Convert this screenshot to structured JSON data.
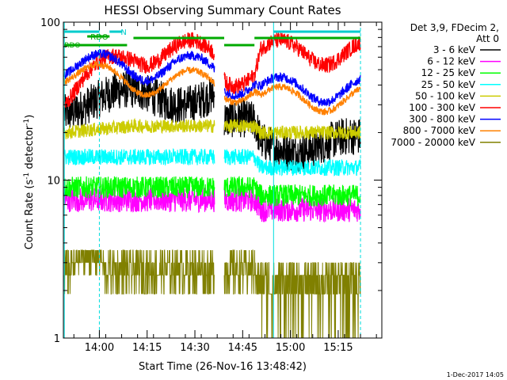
{
  "chart_data": {
    "type": "line",
    "title": "HESSI Observing Summary Count Rates",
    "xlabel": "Start Time (26-Nov-16 13:48:42)",
    "ylabel": "Count Rate (s⁻¹ detector⁻¹)",
    "ylabel_main": "Count Rate (s",
    "ylabel_sup1": "-1",
    "ylabel_mid": " detector",
    "ylabel_sup2": "-1",
    "ylabel_end": ")",
    "y_scale": "log",
    "ylim": [
      1,
      100
    ],
    "y_tick_labels": [
      "1",
      "10",
      "100"
    ],
    "xlim_minutes_after_start": [
      0,
      100
    ],
    "x_ticks": [
      {
        "label": "14:00",
        "t": 11.3
      },
      {
        "label": "14:15",
        "t": 26.3
      },
      {
        "label": "14:30",
        "t": 41.3
      },
      {
        "label": "14:45",
        "t": 56.3
      },
      {
        "label": "15:00",
        "t": 71.3
      },
      {
        "label": "15:15",
        "t": 86.3
      }
    ],
    "legend_header": [
      "Det 3,9, FDecim 2,",
      "Att 0"
    ],
    "legend_placement": "right-outside",
    "series": [
      {
        "name": "3 - 6 keV",
        "color": "#000000"
      },
      {
        "name": "6 - 12 keV",
        "color": "#ff00ff"
      },
      {
        "name": "12 - 25 keV",
        "color": "#00ff00"
      },
      {
        "name": "25 - 50 keV",
        "color": "#00ffff"
      },
      {
        "name": "50 - 100 keV",
        "color": "#cccc00"
      },
      {
        "name": "100 - 300 keV",
        "color": "#ff0000"
      },
      {
        "name": "300 - 800 keV",
        "color": "#0000ff"
      },
      {
        "name": "800 - 7000 keV",
        "color": "#ff8000"
      },
      {
        "name": "7000 - 20000 keV",
        "color": "#808000"
      }
    ],
    "approx_levels_counts_per_s": [
      {
        "segment": "13:49-14:11",
        "values": [
          30,
          7.5,
          9,
          14,
          20,
          35,
          55,
          50,
          3
        ]
      },
      {
        "segment": "14:11-14:38",
        "values": [
          34,
          7.5,
          9,
          14,
          22,
          65,
          52,
          42,
          3
        ]
      },
      {
        "segment": "14:41-14:58",
        "values": [
          22,
          7.5,
          9,
          14,
          22,
          48,
          42,
          38,
          3
        ]
      },
      {
        "segment": "14:58-15:22",
        "values": [
          17,
          6.5,
          8,
          12,
          20,
          65,
          38,
          33,
          2.5
        ]
      }
    ],
    "flag_bars": [
      {
        "label": "RDO",
        "color": "#00aa00"
      },
      {
        "label": "RDO",
        "color": "#00aa00"
      },
      {
        "label": "N",
        "color": "#00cccc"
      }
    ],
    "footer_timestamp": "1-Dec-2017 14:05",
    "grid": false
  }
}
